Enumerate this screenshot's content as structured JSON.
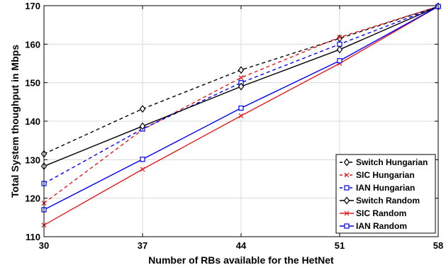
{
  "chart_data": {
    "type": "line",
    "title": "",
    "xlabel": "Number of RBs available for the HetNet",
    "ylabel": "Total System thoughput in Mbps",
    "x": [
      30,
      37,
      44,
      51,
      58
    ],
    "x_ticks": [
      "30",
      "37",
      "44",
      "51",
      "58"
    ],
    "y_ticks": [
      "110",
      "120",
      "130",
      "140",
      "150",
      "160",
      "170"
    ],
    "xlim": [
      30,
      58
    ],
    "ylim": [
      110,
      170
    ],
    "grid": true,
    "legend_position": "bottom-right",
    "series": [
      {
        "name": "Switch Hungarian",
        "values": [
          131.5,
          143.2,
          153.3,
          161.5,
          169.8
        ],
        "color": "#000000",
        "dash": "dashed",
        "marker": "diamond"
      },
      {
        "name": "SIC Hungarian",
        "values": [
          118.7,
          137.8,
          151.3,
          161.8,
          169.8
        ],
        "color": "#e41a1c",
        "dash": "dashed",
        "marker": "x"
      },
      {
        "name": "IAN Hungarian",
        "values": [
          123.8,
          138.0,
          150.0,
          160.0,
          169.8
        ],
        "color": "#0000ff",
        "dash": "dashed",
        "marker": "square"
      },
      {
        "name": "Switch Random",
        "values": [
          128.3,
          138.7,
          149.0,
          158.6,
          169.8
        ],
        "color": "#000000",
        "dash": "solid",
        "marker": "diamond"
      },
      {
        "name": "SIC Random",
        "values": [
          113.0,
          127.5,
          141.4,
          155.0,
          169.8
        ],
        "color": "#e41a1c",
        "dash": "solid",
        "marker": "x"
      },
      {
        "name": "IAN Random",
        "values": [
          117.0,
          130.1,
          143.4,
          155.7,
          169.8
        ],
        "color": "#0000ff",
        "dash": "solid",
        "marker": "square"
      }
    ]
  }
}
